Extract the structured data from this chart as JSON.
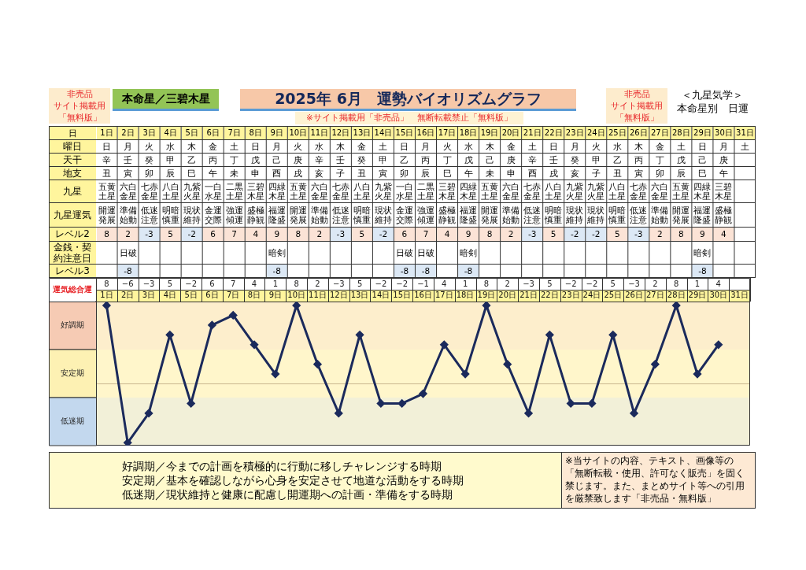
{
  "chart_data": [
    {
      "type": "other",
      "title": "2025年 6月　運勢バイオリズムグラフ",
      "annotations": [
        "非売品",
        "サイト掲載用",
        "「無料版」",
        "本命星／三碧木星",
        "※サイト掲載用「非売品」　無断転載禁止「無料版」",
        "非売品",
        "サイト掲載用",
        "「無料版」",
        "＜九星気学＞",
        "本命星別　日運"
      ]
    },
    {
      "type": "heatmap",
      "xlabel": "日",
      "categories": [
        "1日",
        "2日",
        "3日",
        "4日",
        "5日",
        "6日",
        "7日",
        "8日",
        "9日",
        "10日",
        "11日",
        "12日",
        "13日",
        "14日",
        "15日",
        "16日",
        "17日",
        "18日",
        "19日",
        "20日",
        "21日",
        "22日",
        "23日",
        "24日",
        "25日",
        "26日",
        "27日",
        "28日",
        "29日",
        "30日",
        "31日"
      ],
      "y_categories": [
        "曜日",
        "天干",
        "地支",
        "九星",
        "九星運気",
        "レベル2",
        "金銭・契約注意日",
        "レベル3"
      ],
      "cells": [
        [
          null,
          null,
          null,
          null,
          null,
          null,
          null,
          null,
          null,
          null,
          null,
          null,
          null,
          null,
          null,
          null,
          null,
          null,
          null,
          null,
          null,
          null,
          null,
          null,
          null,
          null,
          null,
          null,
          null,
          null,
          null
        ],
        [
          null,
          null,
          null,
          null,
          null,
          null,
          null,
          null,
          null,
          null,
          null,
          null,
          null,
          null,
          null,
          null,
          null,
          null,
          null,
          null,
          null,
          null,
          null,
          null,
          null,
          null,
          null,
          null,
          null,
          null,
          null
        ],
        [
          null,
          null,
          null,
          null,
          null,
          null,
          null,
          null,
          null,
          null,
          null,
          null,
          null,
          null,
          null,
          null,
          null,
          null,
          null,
          null,
          null,
          null,
          null,
          null,
          null,
          null,
          null,
          null,
          null,
          null,
          null
        ],
        [
          null,
          null,
          null,
          null,
          null,
          null,
          null,
          null,
          null,
          null,
          null,
          null,
          null,
          null,
          null,
          null,
          null,
          null,
          null,
          null,
          null,
          null,
          null,
          null,
          null,
          null,
          null,
          null,
          null,
          null,
          null
        ],
        [
          null,
          null,
          null,
          null,
          null,
          null,
          null,
          null,
          null,
          null,
          null,
          null,
          null,
          null,
          null,
          null,
          null,
          null,
          null,
          null,
          null,
          null,
          null,
          null,
          null,
          null,
          null,
          null,
          null,
          null,
          null
        ],
        [
          8,
          2,
          -3,
          5,
          -2,
          6,
          7,
          4,
          9,
          8,
          2,
          -3,
          5,
          -2,
          6,
          7,
          4,
          9,
          8,
          2,
          -3,
          5,
          -2,
          -2,
          5,
          -3,
          2,
          8,
          9,
          4,
          null
        ],
        [
          null,
          null,
          null,
          null,
          null,
          null,
          null,
          null,
          null,
          null,
          null,
          null,
          null,
          null,
          null,
          null,
          null,
          null,
          null,
          null,
          null,
          null,
          null,
          null,
          null,
          null,
          null,
          null,
          null,
          null,
          null
        ],
        [
          null,
          -8,
          null,
          null,
          null,
          null,
          null,
          null,
          -8,
          null,
          null,
          null,
          null,
          null,
          -8,
          -8,
          null,
          -8,
          null,
          null,
          null,
          null,
          null,
          null,
          null,
          null,
          null,
          null,
          -8,
          null,
          null
        ]
      ],
      "cell_labels": [
        [
          "日",
          "月",
          "火",
          "水",
          "木",
          "金",
          "土",
          "日",
          "月",
          "火",
          "水",
          "木",
          "金",
          "土",
          "日",
          "月",
          "火",
          "水",
          "木",
          "金",
          "土",
          "日",
          "月",
          "火",
          "水",
          "木",
          "金",
          "土",
          "日",
          "月",
          "土"
        ],
        [
          "辛",
          "壬",
          "癸",
          "甲",
          "乙",
          "丙",
          "丁",
          "戊",
          "己",
          "庚",
          "辛",
          "壬",
          "癸",
          "甲",
          "乙",
          "丙",
          "丁",
          "戊",
          "己",
          "庚",
          "辛",
          "壬",
          "癸",
          "甲",
          "乙",
          "丙",
          "丁",
          "戊",
          "己",
          "庚",
          null
        ],
        [
          "丑",
          "寅",
          "卯",
          "辰",
          "巳",
          "午",
          "未",
          "申",
          "酉",
          "戌",
          "亥",
          "子",
          "丑",
          "寅",
          "卯",
          "辰",
          "巳",
          "午",
          "未",
          "申",
          "酉",
          "戌",
          "亥",
          "子",
          "丑",
          "寅",
          "卯",
          "辰",
          "巳",
          "午",
          null
        ],
        [
          "五黄土星",
          "六白金星",
          "七赤金星",
          "八白土星",
          "九紫火星",
          "一白水星",
          "二黒土星",
          "三碧木星",
          "四緑木星",
          "五黄土星",
          "六白金星",
          "七赤金星",
          "八白土星",
          "九紫火星",
          "一白水星",
          "二黒土星",
          "三碧木星",
          "四緑木星",
          "五黄土星",
          "六白金星",
          "七赤金星",
          "八白土星",
          "九紫火星",
          "九紫火星",
          "八白土星",
          "七赤金星",
          "六白金星",
          "五黄土星",
          "四緑木星",
          "三碧木星",
          null
        ],
        [
          "開運発展",
          "準備始動",
          "低迷注意",
          "明暗慎重",
          "現状維持",
          "金運交際",
          "強運傾運",
          "盛極静観",
          "福運隆盛",
          "開運発展",
          "準備始動",
          "低迷注意",
          "明暗慎重",
          "現状維持",
          "金運交際",
          "強運傾運",
          "盛極静観",
          "福運隆盛",
          "開運発展",
          "準備始動",
          "低迷注意",
          "明暗慎重",
          "現状維持",
          "現状維持",
          "明暗慎重",
          "低迷注意",
          "準備始動",
          "開運発展",
          "福運隆盛",
          "盛極静観",
          null
        ],
        [
          "8",
          "2",
          "-3",
          "5",
          "-2",
          "6",
          "7",
          "4",
          "9",
          "8",
          "2",
          "-3",
          "5",
          "-2",
          "6",
          "7",
          "4",
          "9",
          "8",
          "2",
          "-3",
          "5",
          "-2",
          "-2",
          "5",
          "-3",
          "2",
          "8",
          "9",
          "4",
          null
        ],
        [
          null,
          "日破",
          null,
          null,
          null,
          null,
          null,
          null,
          "暗剣",
          null,
          null,
          null,
          null,
          null,
          "日破",
          "日破",
          null,
          "暗剣",
          null,
          null,
          null,
          null,
          null,
          null,
          null,
          null,
          null,
          null,
          "暗剣",
          null,
          null
        ],
        [
          null,
          "-8",
          null,
          null,
          null,
          null,
          null,
          null,
          "-8",
          null,
          null,
          null,
          null,
          null,
          "-8",
          "-8",
          null,
          "-8",
          null,
          null,
          null,
          null,
          null,
          null,
          null,
          null,
          null,
          null,
          "-8",
          null,
          null
        ]
      ]
    },
    {
      "type": "line",
      "ylabel": "運気総合運",
      "categories": [
        "1日",
        "2日",
        "3日",
        "4日",
        "5日",
        "6日",
        "7日",
        "8日",
        "9日",
        "10日",
        "11日",
        "12日",
        "13日",
        "14日",
        "15日",
        "16日",
        "17日",
        "18日",
        "19日",
        "20日",
        "21日",
        "22日",
        "23日",
        "24日",
        "25日",
        "26日",
        "27日",
        "28日",
        "29日",
        "30日",
        "31日"
      ],
      "series": [
        {
          "color": "#1b2a5c",
          "values": [
            8,
            -6,
            -3,
            5,
            -2,
            6,
            7,
            4,
            1,
            8,
            2,
            -3,
            5,
            -2,
            -2,
            -1,
            4,
            1,
            8,
            2,
            -3,
            5,
            -2,
            -2,
            5,
            -3,
            2,
            8,
            1,
            4,
            null
          ]
        }
      ],
      "ylim": [
        -6.3,
        8.4
      ],
      "tick_labels": "x",
      "data_labels": true,
      "marker": "diamond",
      "line_style": "solid",
      "bands": [
        {
          "axis": "y",
          "from": 3.5,
          "to": 8.4,
          "label": "好調期",
          "color": "#f6cbb4"
        },
        {
          "axis": "y",
          "from": -1.4,
          "to": 3.5,
          "label": "安定期",
          "color": "#fdf1b3"
        },
        {
          "axis": "y",
          "from": -6.3,
          "to": -1.4,
          "label": "低迷期",
          "color": "#c3d8ee"
        }
      ],
      "ref_lines": [
        {
          "axis": "y",
          "value": 0,
          "color": "#cbb890"
        }
      ]
    },
    {
      "type": "other",
      "annotations": [
        "好調期／今までの計画を積極的に行動に移しチャレンジする時期",
        "安定期／基本を確認しながら心身を安定させて地道な活動をする時期",
        "低迷期／現状維持と健康に配慮し開運期への計画・準備をする時期",
        "※当サイトの内容、テキスト、画像等の「無断転載・使用、許可なく販売」を固く禁じます。また、まとめサイト等への引用を厳禁致します「非売品・無料版」"
      ]
    }
  ]
}
